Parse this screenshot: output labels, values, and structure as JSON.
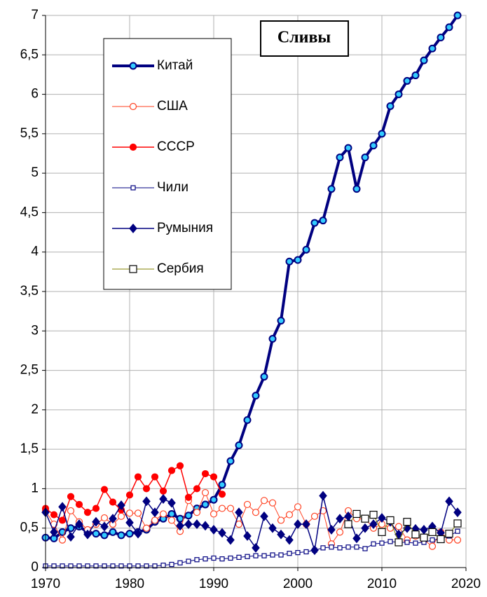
{
  "chart_data": {
    "type": "line",
    "title": "Сливы",
    "x": [
      1970,
      1971,
      1972,
      1973,
      1974,
      1975,
      1976,
      1977,
      1978,
      1979,
      1980,
      1981,
      1982,
      1983,
      1984,
      1985,
      1986,
      1987,
      1988,
      1989,
      1990,
      1991,
      1992,
      1993,
      1994,
      1995,
      1996,
      1997,
      1998,
      1999,
      2000,
      2001,
      2002,
      2003,
      2004,
      2005,
      2006,
      2007,
      2008,
      2009,
      2010,
      2011,
      2012,
      2013,
      2014,
      2015,
      2016,
      2017,
      2018,
      2019
    ],
    "xlim": [
      1970,
      2020
    ],
    "xticks": [
      1970,
      1980,
      1990,
      2000,
      2010,
      2020
    ],
    "ylim": [
      0,
      7
    ],
    "yticks": [
      0,
      {
        "value": 0.5,
        "label": "0,5"
      },
      1,
      {
        "value": 1.5,
        "label": "1,5"
      },
      2,
      {
        "value": 2.5,
        "label": "2,5"
      },
      3,
      {
        "value": 3.5,
        "label": "3,5"
      },
      4,
      {
        "value": 4.5,
        "label": "4,5"
      },
      5,
      {
        "value": 5.5,
        "label": "5,5"
      },
      6,
      {
        "value": 6.5,
        "label": "6,5"
      },
      7
    ],
    "grid": true,
    "series": [
      {
        "name": "Китай",
        "color": "#000080",
        "line_width": 4,
        "marker": "circle",
        "marker_fill": "#33ccff",
        "values": [
          0.38,
          0.37,
          0.45,
          0.5,
          0.52,
          0.45,
          0.43,
          0.41,
          0.45,
          0.41,
          0.43,
          0.45,
          0.48,
          0.58,
          0.62,
          0.68,
          0.62,
          0.66,
          0.75,
          0.8,
          0.86,
          1.05,
          1.35,
          1.55,
          1.87,
          2.18,
          2.42,
          2.9,
          3.13,
          3.88,
          3.9,
          4.03,
          4.37,
          4.4,
          4.8,
          5.2,
          5.32,
          4.8,
          5.2,
          5.35,
          5.5,
          5.85,
          6.0,
          6.17,
          6.24,
          6.43,
          6.58,
          6.72,
          6.85,
          7.0
        ]
      },
      {
        "name": "США",
        "color": "#ff4020",
        "line_width": 1,
        "marker": "circle",
        "marker_fill": "#ffffff",
        "values": [
          0.72,
          0.55,
          0.35,
          0.72,
          0.58,
          0.48,
          0.55,
          0.63,
          0.55,
          0.65,
          0.69,
          0.69,
          0.5,
          0.6,
          0.68,
          0.6,
          0.46,
          0.85,
          0.7,
          0.95,
          0.68,
          0.75,
          0.75,
          0.55,
          0.8,
          0.7,
          0.85,
          0.82,
          0.6,
          0.67,
          0.77,
          0.55,
          0.65,
          0.72,
          0.3,
          0.45,
          0.72,
          0.62,
          0.62,
          0.5,
          0.55,
          0.5,
          0.52,
          0.35,
          0.4,
          0.35,
          0.27,
          0.45,
          0.35,
          0.35
        ]
      },
      {
        "name": "СССР",
        "color": "#ff0000",
        "line_width": 1.5,
        "marker": "circle",
        "marker_fill": "#ff0000",
        "values": [
          0.75,
          0.67,
          0.6,
          0.9,
          0.8,
          0.7,
          0.75,
          0.99,
          0.83,
          0.73,
          0.92,
          1.15,
          1.0,
          1.15,
          0.97,
          1.23,
          1.29,
          0.89,
          1.0,
          1.19,
          1.15,
          0.93,
          null,
          null,
          null,
          null,
          null,
          null,
          null,
          null,
          null,
          null,
          null,
          null,
          null,
          null,
          null,
          null,
          null,
          null,
          null,
          null,
          null,
          null,
          null,
          null,
          null,
          null,
          null,
          null
        ]
      },
      {
        "name": "Чили",
        "color": "#000080",
        "line_width": 1,
        "marker": "square",
        "marker_fill": "#ffffff",
        "values": [
          0.02,
          0.02,
          0.02,
          0.02,
          0.02,
          0.02,
          0.02,
          0.02,
          0.02,
          0.02,
          0.02,
          0.02,
          0.02,
          0.02,
          0.03,
          0.04,
          0.06,
          0.08,
          0.1,
          0.11,
          0.12,
          0.11,
          0.12,
          0.13,
          0.14,
          0.15,
          0.15,
          0.16,
          0.16,
          0.18,
          0.19,
          0.2,
          0.22,
          0.25,
          0.26,
          0.25,
          0.26,
          0.26,
          0.24,
          0.3,
          0.31,
          0.33,
          0.32,
          0.32,
          0.31,
          0.32,
          0.35,
          0.36,
          0.4,
          0.46
        ]
      },
      {
        "name": "Румыния",
        "color": "#000080",
        "line_width": 1.5,
        "marker": "diamond",
        "marker_fill": "#000080",
        "values": [
          0.7,
          0.45,
          0.77,
          0.39,
          0.55,
          0.42,
          0.58,
          0.52,
          0.62,
          0.79,
          0.57,
          0.43,
          0.84,
          0.7,
          0.87,
          0.82,
          0.53,
          0.55,
          0.55,
          0.53,
          0.48,
          0.44,
          0.35,
          0.7,
          0.4,
          0.25,
          0.65,
          0.5,
          0.42,
          0.35,
          0.55,
          0.55,
          0.22,
          0.91,
          0.48,
          0.62,
          0.65,
          0.37,
          0.5,
          0.55,
          0.63,
          0.58,
          0.42,
          0.5,
          0.49,
          0.48,
          0.52,
          0.44,
          0.84,
          0.7
        ]
      },
      {
        "name": "Сербия",
        "color": "#808000",
        "line_width": 1,
        "marker": "bigsquare",
        "marker_fill": "#ffffff",
        "values": [
          null,
          null,
          null,
          null,
          null,
          null,
          null,
          null,
          null,
          null,
          null,
          null,
          null,
          null,
          null,
          null,
          null,
          null,
          null,
          null,
          null,
          null,
          null,
          null,
          null,
          null,
          null,
          null,
          null,
          null,
          null,
          null,
          null,
          null,
          null,
          null,
          0.55,
          0.68,
          0.62,
          0.67,
          0.45,
          0.6,
          0.32,
          0.58,
          0.42,
          0.38,
          0.45,
          0.36,
          0.43,
          0.56
        ]
      }
    ]
  }
}
